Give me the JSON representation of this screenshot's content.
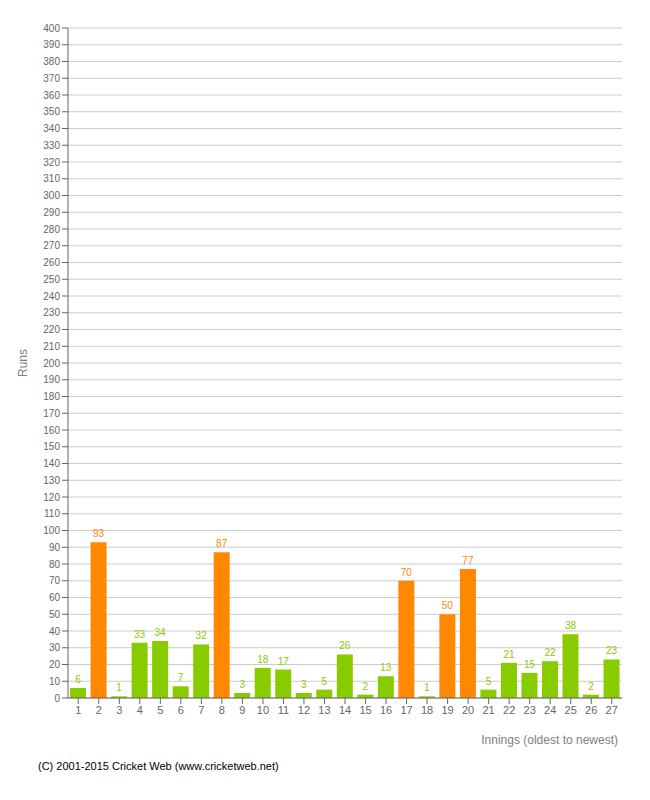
{
  "chart_data": {
    "type": "bar",
    "xlabel": "Innings (oldest to newest)",
    "ylabel": "Runs",
    "categories": [
      "1",
      "2",
      "3",
      "4",
      "5",
      "6",
      "7",
      "8",
      "9",
      "10",
      "11",
      "12",
      "13",
      "14",
      "15",
      "16",
      "17",
      "18",
      "19",
      "20",
      "21",
      "22",
      "23",
      "24",
      "25",
      "26",
      "27"
    ],
    "values": [
      6,
      93,
      1,
      33,
      34,
      7,
      32,
      87,
      3,
      18,
      17,
      3,
      5,
      26,
      2,
      13,
      70,
      1,
      50,
      77,
      5,
      21,
      15,
      22,
      38,
      2,
      23
    ],
    "colors": [
      "#88cc00",
      "#ff8800",
      "#88cc00",
      "#88cc00",
      "#88cc00",
      "#88cc00",
      "#88cc00",
      "#ff8800",
      "#88cc00",
      "#88cc00",
      "#88cc00",
      "#88cc00",
      "#88cc00",
      "#88cc00",
      "#88cc00",
      "#88cc00",
      "#ff8800",
      "#88cc00",
      "#ff8800",
      "#ff8800",
      "#88cc00",
      "#88cc00",
      "#88cc00",
      "#88cc00",
      "#88cc00",
      "#88cc00",
      "#88cc00"
    ],
    "ylim": [
      0,
      400
    ],
    "yticks": [
      0,
      10,
      20,
      30,
      40,
      50,
      60,
      70,
      80,
      90,
      100,
      110,
      120,
      130,
      140,
      150,
      160,
      170,
      180,
      190,
      200,
      210,
      220,
      230,
      240,
      250,
      260,
      270,
      280,
      290,
      300,
      310,
      320,
      330,
      340,
      350,
      360,
      370,
      380,
      390,
      400
    ],
    "grid": true,
    "data_labels": true,
    "annotations": [
      "(C) 2001-2015 Cricket Web (www.cricketweb.net)"
    ]
  }
}
